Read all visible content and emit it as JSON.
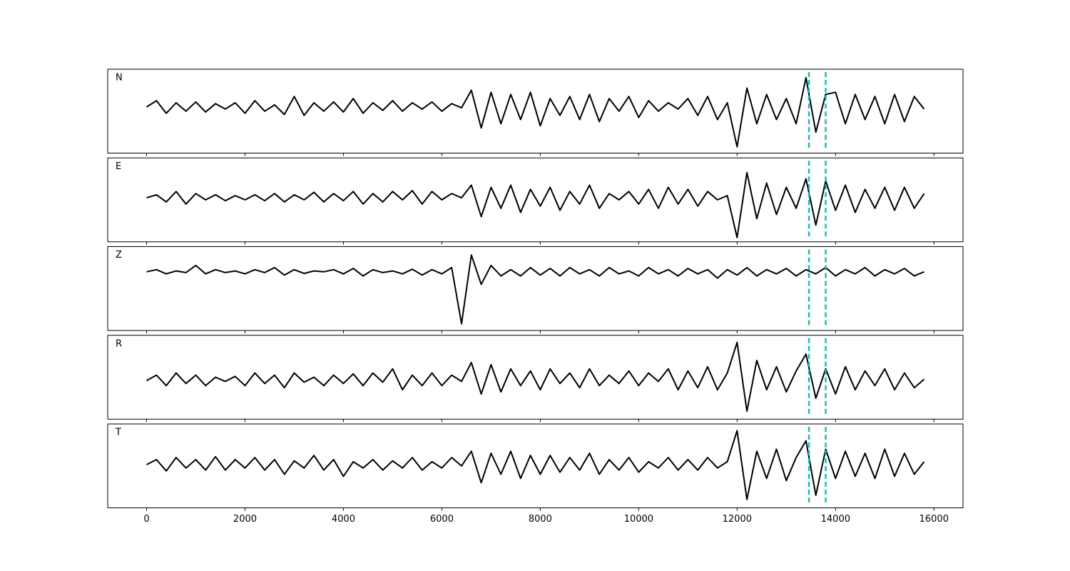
{
  "chart_data": [
    {
      "type": "line",
      "label": "N",
      "color": "#000000",
      "ylim": [
        -1,
        1
      ],
      "values": [
        0.1,
        0.25,
        -0.05,
        0.2,
        0.0,
        0.22,
        -0.02,
        0.18,
        0.05,
        0.2,
        -0.05,
        0.25,
        0.0,
        0.15,
        -0.08,
        0.35,
        -0.1,
        0.2,
        0.0,
        0.22,
        -0.02,
        0.3,
        -0.05,
        0.2,
        0.02,
        0.25,
        0.0,
        0.2,
        0.05,
        0.22,
        0.0,
        0.18,
        0.08,
        0.5,
        -0.4,
        0.45,
        -0.3,
        0.4,
        -0.2,
        0.45,
        -0.35,
        0.3,
        -0.1,
        0.35,
        -0.2,
        0.4,
        -0.25,
        0.3,
        0.0,
        0.35,
        -0.15,
        0.25,
        0.0,
        0.2,
        0.05,
        0.3,
        -0.1,
        0.35,
        -0.2,
        0.2,
        -0.85,
        0.55,
        -0.3,
        0.4,
        -0.2,
        0.3,
        -0.3,
        0.8,
        -0.5,
        0.4,
        0.45,
        -0.3,
        0.4,
        -0.2,
        0.35,
        -0.3,
        0.4,
        -0.25,
        0.35,
        0.05
      ]
    },
    {
      "type": "line",
      "label": "E",
      "color": "#000000",
      "ylim": [
        -1,
        1
      ],
      "values": [
        0.05,
        0.12,
        -0.05,
        0.2,
        -0.1,
        0.15,
        0.0,
        0.12,
        -0.02,
        0.1,
        0.0,
        0.12,
        -0.02,
        0.15,
        -0.05,
        0.12,
        0.0,
        0.18,
        -0.05,
        0.15,
        -0.02,
        0.2,
        -0.1,
        0.15,
        -0.05,
        0.2,
        0.0,
        0.22,
        -0.1,
        0.2,
        0.0,
        0.15,
        0.05,
        0.35,
        -0.4,
        0.3,
        -0.2,
        0.35,
        -0.3,
        0.25,
        -0.15,
        0.3,
        -0.25,
        0.2,
        -0.1,
        0.35,
        -0.2,
        0.15,
        0.0,
        0.2,
        -0.1,
        0.25,
        -0.2,
        0.3,
        -0.1,
        0.25,
        -0.15,
        0.2,
        0.0,
        0.1,
        -0.9,
        0.65,
        -0.45,
        0.4,
        -0.35,
        0.3,
        -0.2,
        0.5,
        -0.6,
        0.45,
        -0.25,
        0.35,
        -0.3,
        0.25,
        -0.2,
        0.3,
        -0.25,
        0.3,
        -0.2,
        0.15
      ]
    },
    {
      "type": "line",
      "label": "Z",
      "color": "#000000",
      "ylim": [
        -1,
        1
      ],
      "values": [
        0.4,
        0.45,
        0.35,
        0.42,
        0.38,
        0.55,
        0.35,
        0.45,
        0.38,
        0.42,
        0.35,
        0.45,
        0.38,
        0.5,
        0.32,
        0.45,
        0.36,
        0.42,
        0.4,
        0.45,
        0.35,
        0.48,
        0.3,
        0.45,
        0.38,
        0.42,
        0.35,
        0.46,
        0.32,
        0.45,
        0.35,
        0.5,
        -0.84,
        0.8,
        0.1,
        0.55,
        0.3,
        0.45,
        0.3,
        0.5,
        0.32,
        0.48,
        0.3,
        0.5,
        0.35,
        0.45,
        0.3,
        0.5,
        0.35,
        0.42,
        0.3,
        0.5,
        0.35,
        0.45,
        0.3,
        0.48,
        0.35,
        0.45,
        0.25,
        0.45,
        0.32,
        0.5,
        0.3,
        0.45,
        0.35,
        0.48,
        0.3,
        0.45,
        0.35,
        0.5,
        0.3,
        0.45,
        0.35,
        0.5,
        0.3,
        0.45,
        0.35,
        0.48,
        0.3,
        0.4
      ]
    },
    {
      "type": "line",
      "label": "R",
      "color": "#000000",
      "ylim": [
        -1,
        1
      ],
      "values": [
        -0.08,
        0.05,
        -0.2,
        0.1,
        -0.15,
        0.05,
        -0.2,
        0.0,
        -0.1,
        0.02,
        -0.2,
        0.1,
        -0.15,
        0.05,
        -0.25,
        0.1,
        -0.12,
        0.0,
        -0.2,
        0.05,
        -0.15,
        0.08,
        -0.2,
        0.1,
        -0.12,
        0.2,
        -0.3,
        0.05,
        -0.2,
        0.1,
        -0.2,
        0.05,
        -0.1,
        0.35,
        -0.4,
        0.3,
        -0.35,
        0.2,
        -0.2,
        0.15,
        -0.3,
        0.2,
        -0.15,
        0.1,
        -0.25,
        0.2,
        -0.2,
        0.05,
        -0.15,
        0.15,
        -0.2,
        0.1,
        -0.1,
        0.2,
        -0.3,
        0.15,
        -0.25,
        0.25,
        -0.3,
        0.1,
        0.83,
        -0.81,
        0.4,
        -0.3,
        0.25,
        -0.35,
        0.15,
        0.55,
        -0.5,
        0.2,
        -0.4,
        0.25,
        -0.3,
        0.15,
        -0.2,
        0.2,
        -0.3,
        0.1,
        -0.25,
        -0.05
      ]
    },
    {
      "type": "line",
      "label": "T",
      "color": "#000000",
      "ylim": [
        -1,
        1
      ],
      "values": [
        0.03,
        0.15,
        -0.12,
        0.2,
        -0.05,
        0.15,
        -0.1,
        0.22,
        -0.1,
        0.15,
        -0.05,
        0.2,
        -0.1,
        0.15,
        -0.2,
        0.12,
        -0.05,
        0.25,
        -0.1,
        0.15,
        -0.25,
        0.1,
        -0.05,
        0.15,
        -0.1,
        0.12,
        -0.05,
        0.2,
        -0.1,
        0.1,
        -0.05,
        0.2,
        0.0,
        0.35,
        -0.4,
        0.3,
        -0.2,
        0.35,
        -0.3,
        0.25,
        -0.2,
        0.25,
        -0.15,
        0.2,
        -0.1,
        0.3,
        -0.2,
        0.15,
        -0.1,
        0.2,
        -0.15,
        0.1,
        -0.05,
        0.2,
        -0.1,
        0.15,
        -0.1,
        0.2,
        -0.05,
        0.1,
        0.84,
        -0.8,
        0.35,
        -0.3,
        0.4,
        -0.35,
        0.2,
        0.6,
        -0.7,
        0.4,
        -0.3,
        0.35,
        -0.25,
        0.3,
        -0.3,
        0.4,
        -0.25,
        0.3,
        -0.2,
        0.1
      ],
      "x": [
        0,
        200,
        400,
        600,
        800,
        1000,
        1200,
        1400,
        1600,
        1800,
        2000,
        2200,
        2400,
        2600,
        2800,
        3000,
        3200,
        3400,
        3600,
        3800,
        4000,
        4200,
        4400,
        4600,
        4800,
        5000,
        5200,
        5400,
        5600,
        5800,
        6000,
        6200,
        6400,
        6600,
        6800,
        7000,
        7200,
        7400,
        7600,
        7800,
        8000,
        8200,
        8400,
        8600,
        8800,
        9000,
        9200,
        9400,
        9600,
        9800,
        10000,
        10200,
        10400,
        10600,
        10800,
        11000,
        11200,
        11400,
        11600,
        11800,
        12000,
        12200,
        12400,
        12600,
        12800,
        13000,
        13200,
        13400,
        13600,
        13800,
        14000,
        14200,
        14400,
        14600,
        14800,
        15000,
        15200,
        15400,
        15600,
        15800
      ],
      "xlim": [
        -790,
        16590
      ],
      "xticks": [
        0,
        2000,
        4000,
        6000,
        8000,
        10000,
        12000,
        14000,
        16000
      ],
      "vlines": [
        13460,
        13800
      ],
      "vline_color": "#17bebb"
    }
  ]
}
